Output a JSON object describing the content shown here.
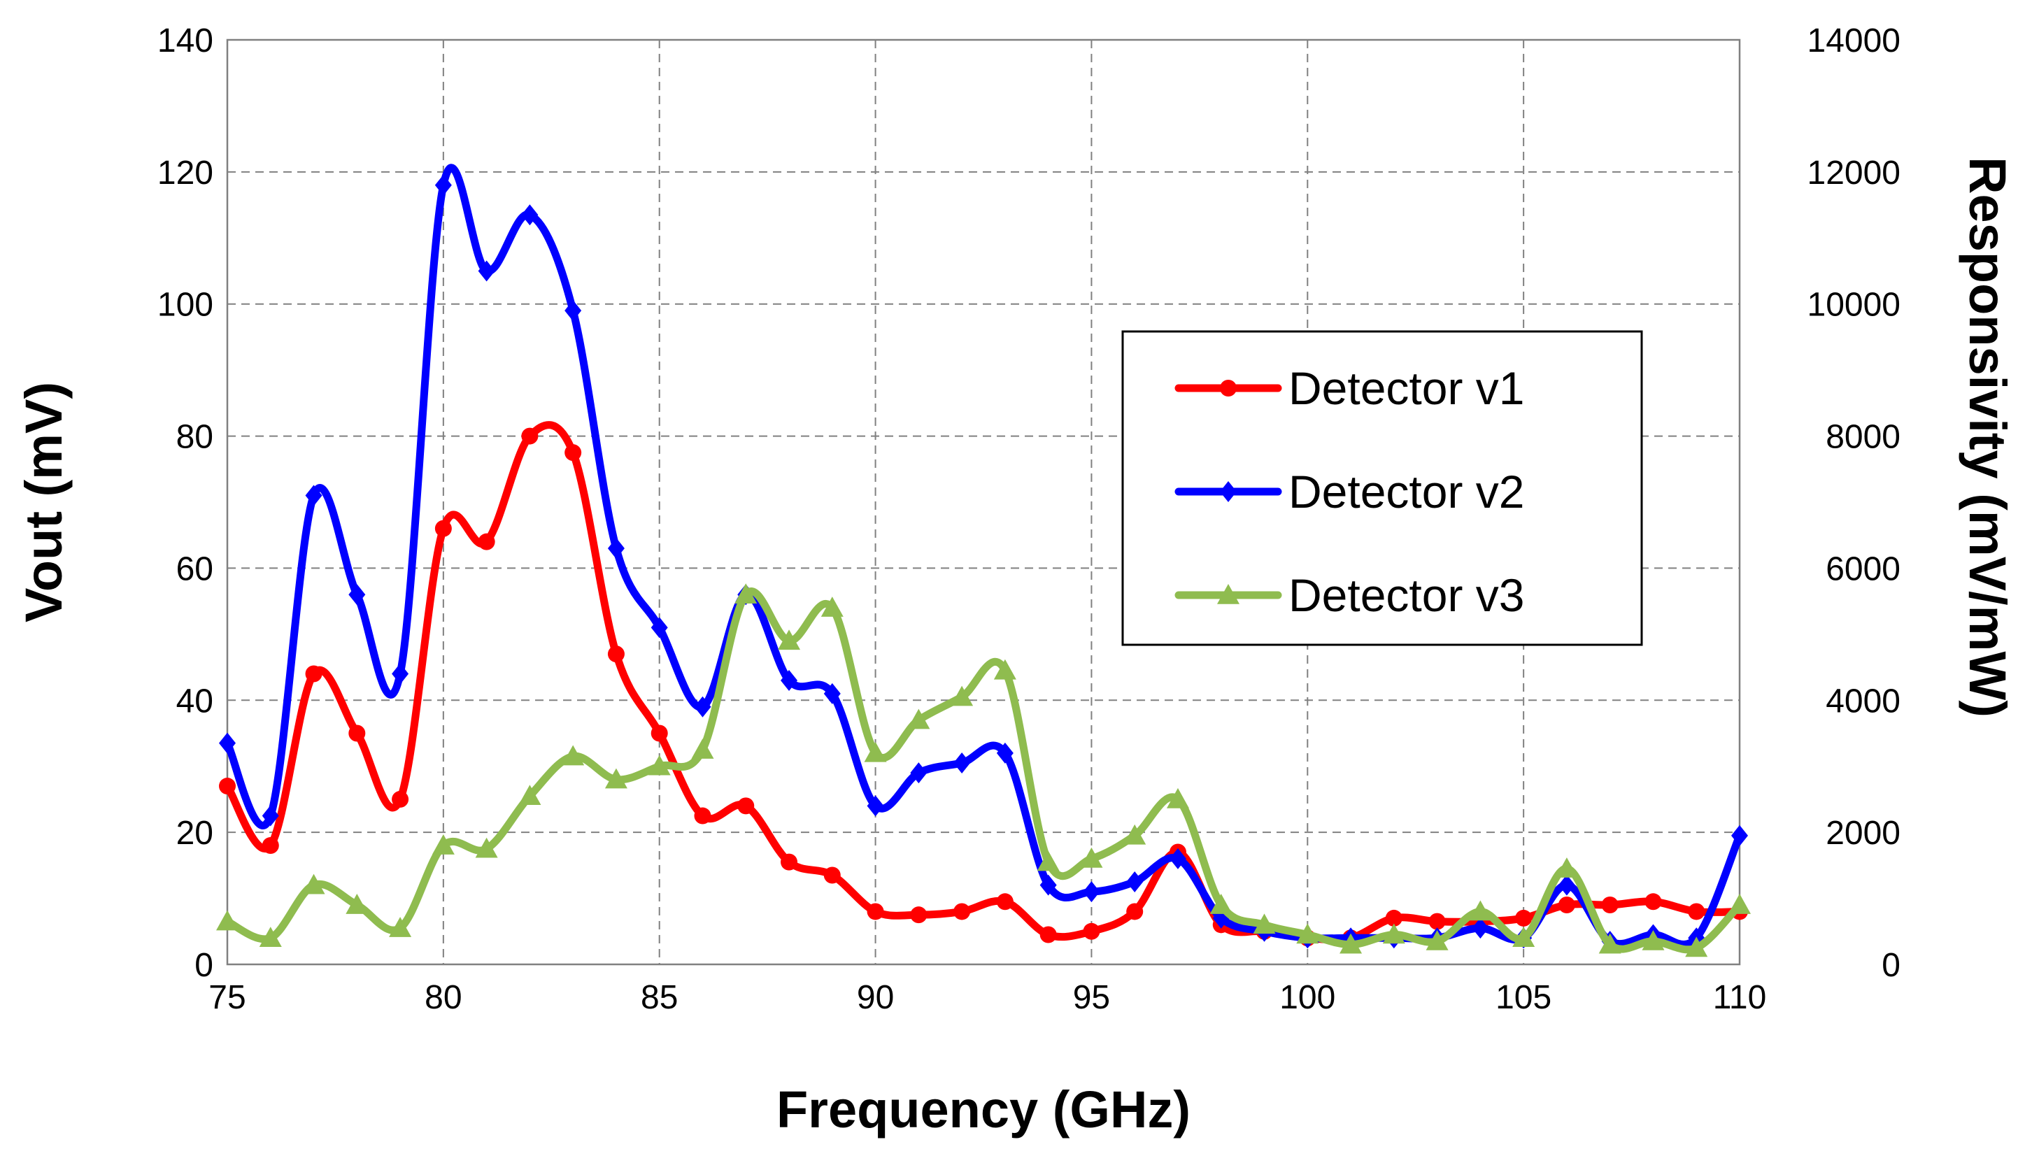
{
  "chart_data": {
    "type": "line",
    "title": "",
    "xlabel": "Frequency (GHz)",
    "ylabel": "Vout (mV)",
    "y2label": "Responsivity (mV/mW)",
    "xlim": [
      75,
      110
    ],
    "ylim": [
      0,
      140
    ],
    "y2lim": [
      0,
      14000
    ],
    "xticks": [
      75,
      80,
      85,
      90,
      95,
      100,
      105,
      110
    ],
    "yticks": [
      0,
      20,
      40,
      60,
      80,
      100,
      120,
      140
    ],
    "y2ticks": [
      0,
      2000,
      4000,
      6000,
      8000,
      10000,
      12000,
      14000
    ],
    "grid": true,
    "legend_position": "right",
    "x": [
      75,
      76,
      77,
      78,
      79,
      80,
      81,
      82,
      83,
      84,
      85,
      86,
      87,
      88,
      89,
      90,
      91,
      92,
      93,
      94,
      95,
      96,
      97,
      98,
      99,
      100,
      101,
      102,
      103,
      104,
      105,
      106,
      107,
      108,
      109,
      110
    ],
    "series": [
      {
        "name": "Detector v1",
        "color": "#ff0000",
        "marker": "circle",
        "values": [
          27,
          18,
          44,
          35,
          25,
          66,
          64,
          80,
          77.5,
          47,
          35,
          22.5,
          24,
          15.5,
          13.5,
          8,
          7.5,
          8,
          9.5,
          4.5,
          5,
          8,
          17,
          6,
          5,
          4,
          4,
          7,
          6.5,
          6.5,
          7,
          9,
          9,
          9.5,
          8,
          8
        ]
      },
      {
        "name": "Detector v2",
        "color": "#0000ff",
        "marker": "diamond",
        "values": [
          33.5,
          22.5,
          71,
          56,
          44,
          118,
          105,
          113.5,
          99,
          63,
          51,
          39,
          56,
          43,
          41,
          24,
          29,
          30.5,
          32,
          12,
          11,
          12.5,
          16,
          7,
          5,
          4,
          4,
          4,
          4,
          5.5,
          4,
          12,
          3.5,
          4.5,
          4,
          19.5
        ]
      },
      {
        "name": "Detector v3",
        "color": "#8fbc4f",
        "marker": "triangle",
        "values": [
          6.5,
          4,
          12,
          9,
          5.5,
          18,
          17.5,
          25.5,
          31.5,
          28,
          30,
          32.5,
          56,
          49,
          54,
          32,
          37,
          40.5,
          44.5,
          15.5,
          16,
          19.5,
          25,
          9,
          6,
          4.5,
          3,
          4.5,
          3.5,
          8,
          4,
          14.5,
          3,
          3.5,
          2.5,
          9
        ]
      }
    ]
  }
}
